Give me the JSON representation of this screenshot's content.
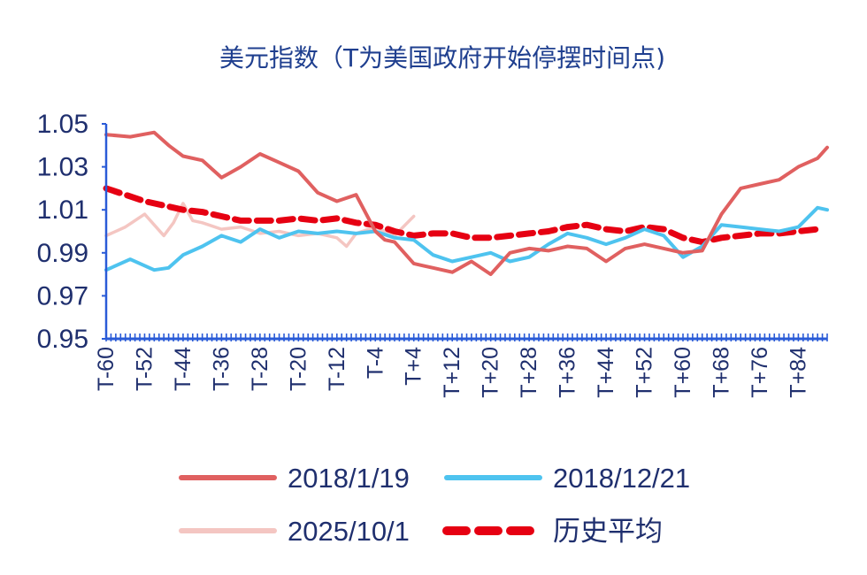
{
  "chart_data": {
    "type": "line",
    "title": "美元指数（T为美国政府开始停摆时间点)",
    "xlabel": "",
    "ylabel": "",
    "ylim": [
      0.95,
      1.05
    ],
    "yticks": [
      "1.05",
      "1.03",
      "1.01",
      "0.99",
      "0.97",
      "0.95"
    ],
    "x_tick_labels": [
      "T-60",
      "T-52",
      "T-44",
      "T-36",
      "T-28",
      "T-20",
      "T-12",
      "T-4",
      "T+4",
      "T+12",
      "T+20",
      "T+28",
      "T+36",
      "T+44",
      "T+52",
      "T+60",
      "T+68",
      "T+76",
      "T+84"
    ],
    "x_tick_positions": [
      -60,
      -52,
      -44,
      -36,
      -28,
      -20,
      -12,
      -4,
      4,
      12,
      20,
      28,
      36,
      44,
      52,
      60,
      68,
      76,
      84
    ],
    "x_range": [
      -60,
      90
    ],
    "grid": false,
    "legend_position": "bottom",
    "series": [
      {
        "name": "2018/1/19",
        "color": "#e06060",
        "x": [
          -60,
          -55,
          -50,
          -47,
          -44,
          -40,
          -36,
          -32,
          -28,
          -24,
          -20,
          -16,
          -12,
          -8,
          -4,
          -2,
          0,
          4,
          6,
          8,
          12,
          16,
          20,
          24,
          28,
          32,
          36,
          40,
          44,
          48,
          52,
          56,
          60,
          64,
          68,
          72,
          76,
          80,
          84,
          88,
          90
        ],
        "y": [
          1.045,
          1.044,
          1.046,
          1.04,
          1.035,
          1.033,
          1.025,
          1.03,
          1.036,
          1.032,
          1.028,
          1.018,
          1.014,
          1.017,
          1.0,
          0.996,
          0.995,
          0.985,
          0.984,
          0.983,
          0.981,
          0.986,
          0.98,
          0.99,
          0.992,
          0.991,
          0.993,
          0.992,
          0.986,
          0.992,
          0.994,
          0.992,
          0.99,
          0.991,
          1.008,
          1.02,
          1.022,
          1.024,
          1.03,
          1.034,
          1.039
        ]
      },
      {
        "name": "2018/12/21",
        "color": "#4ec3ef",
        "x": [
          -60,
          -55,
          -50,
          -47,
          -44,
          -40,
          -36,
          -32,
          -28,
          -24,
          -20,
          -16,
          -12,
          -8,
          -4,
          0,
          4,
          8,
          12,
          16,
          20,
          24,
          28,
          32,
          36,
          40,
          44,
          48,
          52,
          56,
          60,
          64,
          68,
          72,
          76,
          80,
          84,
          88,
          90
        ],
        "y": [
          0.982,
          0.987,
          0.982,
          0.983,
          0.989,
          0.993,
          0.998,
          0.995,
          1.001,
          0.997,
          1.0,
          0.999,
          1.0,
          0.999,
          1.0,
          0.997,
          0.996,
          0.989,
          0.986,
          0.988,
          0.99,
          0.986,
          0.988,
          0.994,
          0.999,
          0.997,
          0.994,
          0.997,
          1.001,
          0.998,
          0.988,
          0.993,
          1.003,
          1.002,
          1.001,
          1.0,
          1.002,
          1.011,
          1.01
        ]
      },
      {
        "name": "2025/10/1",
        "color": "#f4c6c2",
        "x": [
          -60,
          -56,
          -52,
          -48,
          -46,
          -44,
          -42,
          -40,
          -36,
          -32,
          -28,
          -24,
          -20,
          -16,
          -12,
          -10,
          -8,
          -4,
          0,
          4
        ],
        "y": [
          0.998,
          1.002,
          1.008,
          0.998,
          1.004,
          1.013,
          1.005,
          1.004,
          1.001,
          1.002,
          0.999,
          1.0,
          0.998,
          0.999,
          0.997,
          0.993,
          0.999,
          1.002,
          0.998,
          1.007
        ]
      },
      {
        "name": "历史平均",
        "color": "#e60012",
        "x": [
          -60,
          -56,
          -52,
          -48,
          -44,
          -40,
          -36,
          -32,
          -28,
          -24,
          -20,
          -16,
          -12,
          -8,
          -4,
          0,
          4,
          8,
          12,
          16,
          20,
          24,
          28,
          32,
          36,
          40,
          44,
          48,
          52,
          56,
          60,
          64,
          68,
          72,
          76,
          80,
          84,
          88
        ],
        "y": [
          1.02,
          1.017,
          1.014,
          1.012,
          1.01,
          1.009,
          1.007,
          1.005,
          1.005,
          1.005,
          1.006,
          1.005,
          1.006,
          1.004,
          1.003,
          1.0,
          0.998,
          0.999,
          0.999,
          0.997,
          0.997,
          0.998,
          0.999,
          1.0,
          1.002,
          1.003,
          1.001,
          1.0,
          1.002,
          1.001,
          0.997,
          0.995,
          0.997,
          0.998,
          0.999,
          0.999,
          1.0,
          1.001
        ]
      }
    ]
  }
}
